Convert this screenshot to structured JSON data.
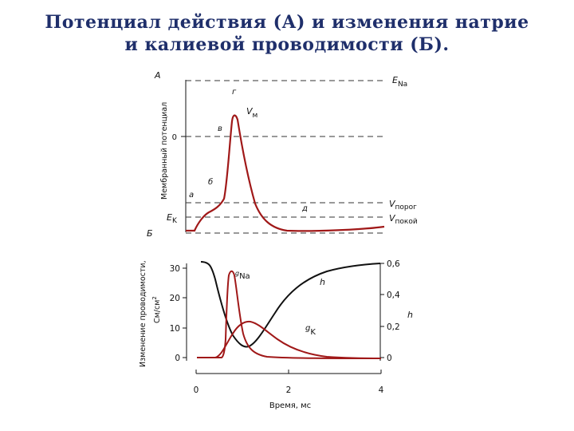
{
  "title": {
    "line1": "Потенциал действия (А) и изменения натрие",
    "line2": "и калиевой проводимости (Б)."
  },
  "panel_a": {
    "label": "А",
    "y_axis_label": "Мембранный потенциал",
    "zero_tick": "0",
    "ek": "E",
    "ek_sub": "K",
    "ena": "E",
    "ena_sub": "Na",
    "vm": "V",
    "vm_sub": "м",
    "vthr": "V",
    "vthr_sub": "порог",
    "vrest": "V",
    "vrest_sub": "покой",
    "phase_a": "а",
    "phase_b": "б",
    "phase_v": "в",
    "phase_g": "г",
    "phase_d": "д"
  },
  "panel_b": {
    "label": "Б",
    "y_axis_label_line1": "Изменение проводимости,",
    "y_axis_label_line2": "См/см",
    "y_axis_label_sup": "2",
    "left_ticks": [
      "30",
      "20",
      "10",
      "0"
    ],
    "right_ticks": [
      "0,6",
      "0,4",
      "0,2",
      "0"
    ],
    "right_label": "h",
    "x_ticks": [
      "0",
      "2",
      "4"
    ],
    "x_label": "Время, мс",
    "gna": "g",
    "gna_sub": "Na",
    "gk": "g",
    "gk_sub": "K",
    "h": "h"
  },
  "colors": {
    "title": "#1f2f6b",
    "curve_red": "#a01818",
    "curve_black": "#111111",
    "dash": "#333333"
  }
}
